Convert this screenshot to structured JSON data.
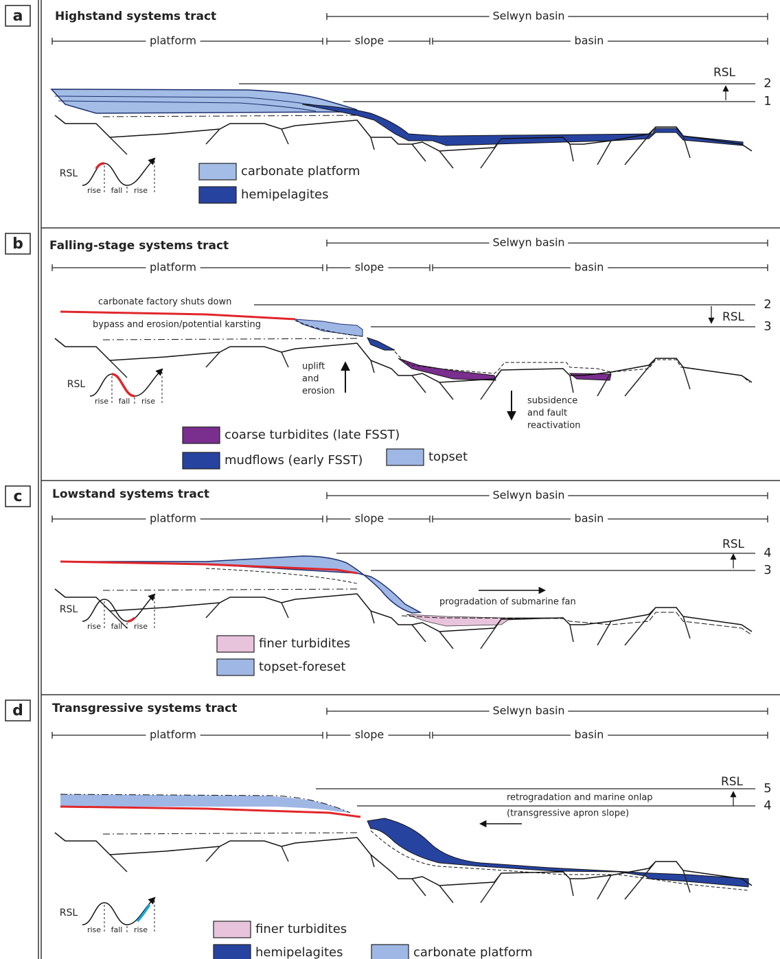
{
  "panels": [
    {
      "label": "a",
      "title": "Highstand systems tract",
      "region": "Selwyn basin",
      "zones": [
        "platform",
        "slope",
        "basin"
      ],
      "sea_level_label": "RSL",
      "sea_levels": [
        2,
        1
      ],
      "curve": {
        "label": "RSL",
        "phases": [
          "rise",
          "fall",
          "rise"
        ]
      },
      "legend": [
        "carbonate platform",
        "hemipelagites"
      ]
    },
    {
      "label": "b",
      "title": "Falling-stage systems tract",
      "region": "Selwyn basin",
      "zones": [
        "platform",
        "slope",
        "basin"
      ],
      "sea_level_label": "RSL",
      "sea_levels": [
        2,
        3
      ],
      "curve": {
        "label": "RSL",
        "phases": [
          "rise",
          "fall",
          "rise"
        ]
      },
      "notes": [
        [
          "carbonate factory shuts down"
        ],
        [
          "bypass and erosion/potential karsting"
        ],
        [
          "uplift",
          "and",
          "erosion"
        ],
        [
          "subsidence",
          "and fault",
          "reactivation"
        ]
      ],
      "legend": [
        "coarse turbidites (late FSST)",
        "mudflows (early FSST)",
        "topset"
      ]
    },
    {
      "label": "c",
      "title": "Lowstand systems tract",
      "region": "Selwyn basin",
      "zones": [
        "platform",
        "slope",
        "basin"
      ],
      "sea_level_label": "RSL",
      "sea_levels": [
        4,
        3
      ],
      "curve": {
        "label": "RSL",
        "phases": [
          "rise",
          "fall",
          "rise"
        ]
      },
      "notes": [
        [
          "progradation of submarine fan"
        ]
      ],
      "legend": [
        "finer turbidites",
        "topset-foreset"
      ]
    },
    {
      "label": "d",
      "title": "Transgressive systems tract",
      "region": "Selwyn basin",
      "zones": [
        "platform",
        "slope",
        "basin"
      ],
      "sea_level_label": "RSL",
      "sea_levels": [
        5,
        4
      ],
      "curve": {
        "label": "RSL",
        "phases": [
          "rise",
          "fall",
          "rise"
        ]
      },
      "notes": [
        [
          "retrogradation and marine onlap",
          "(transgressive apron slope)"
        ]
      ],
      "legend": [
        "finer turbidites",
        "hemipelagites",
        "carbonate platform"
      ]
    }
  ]
}
